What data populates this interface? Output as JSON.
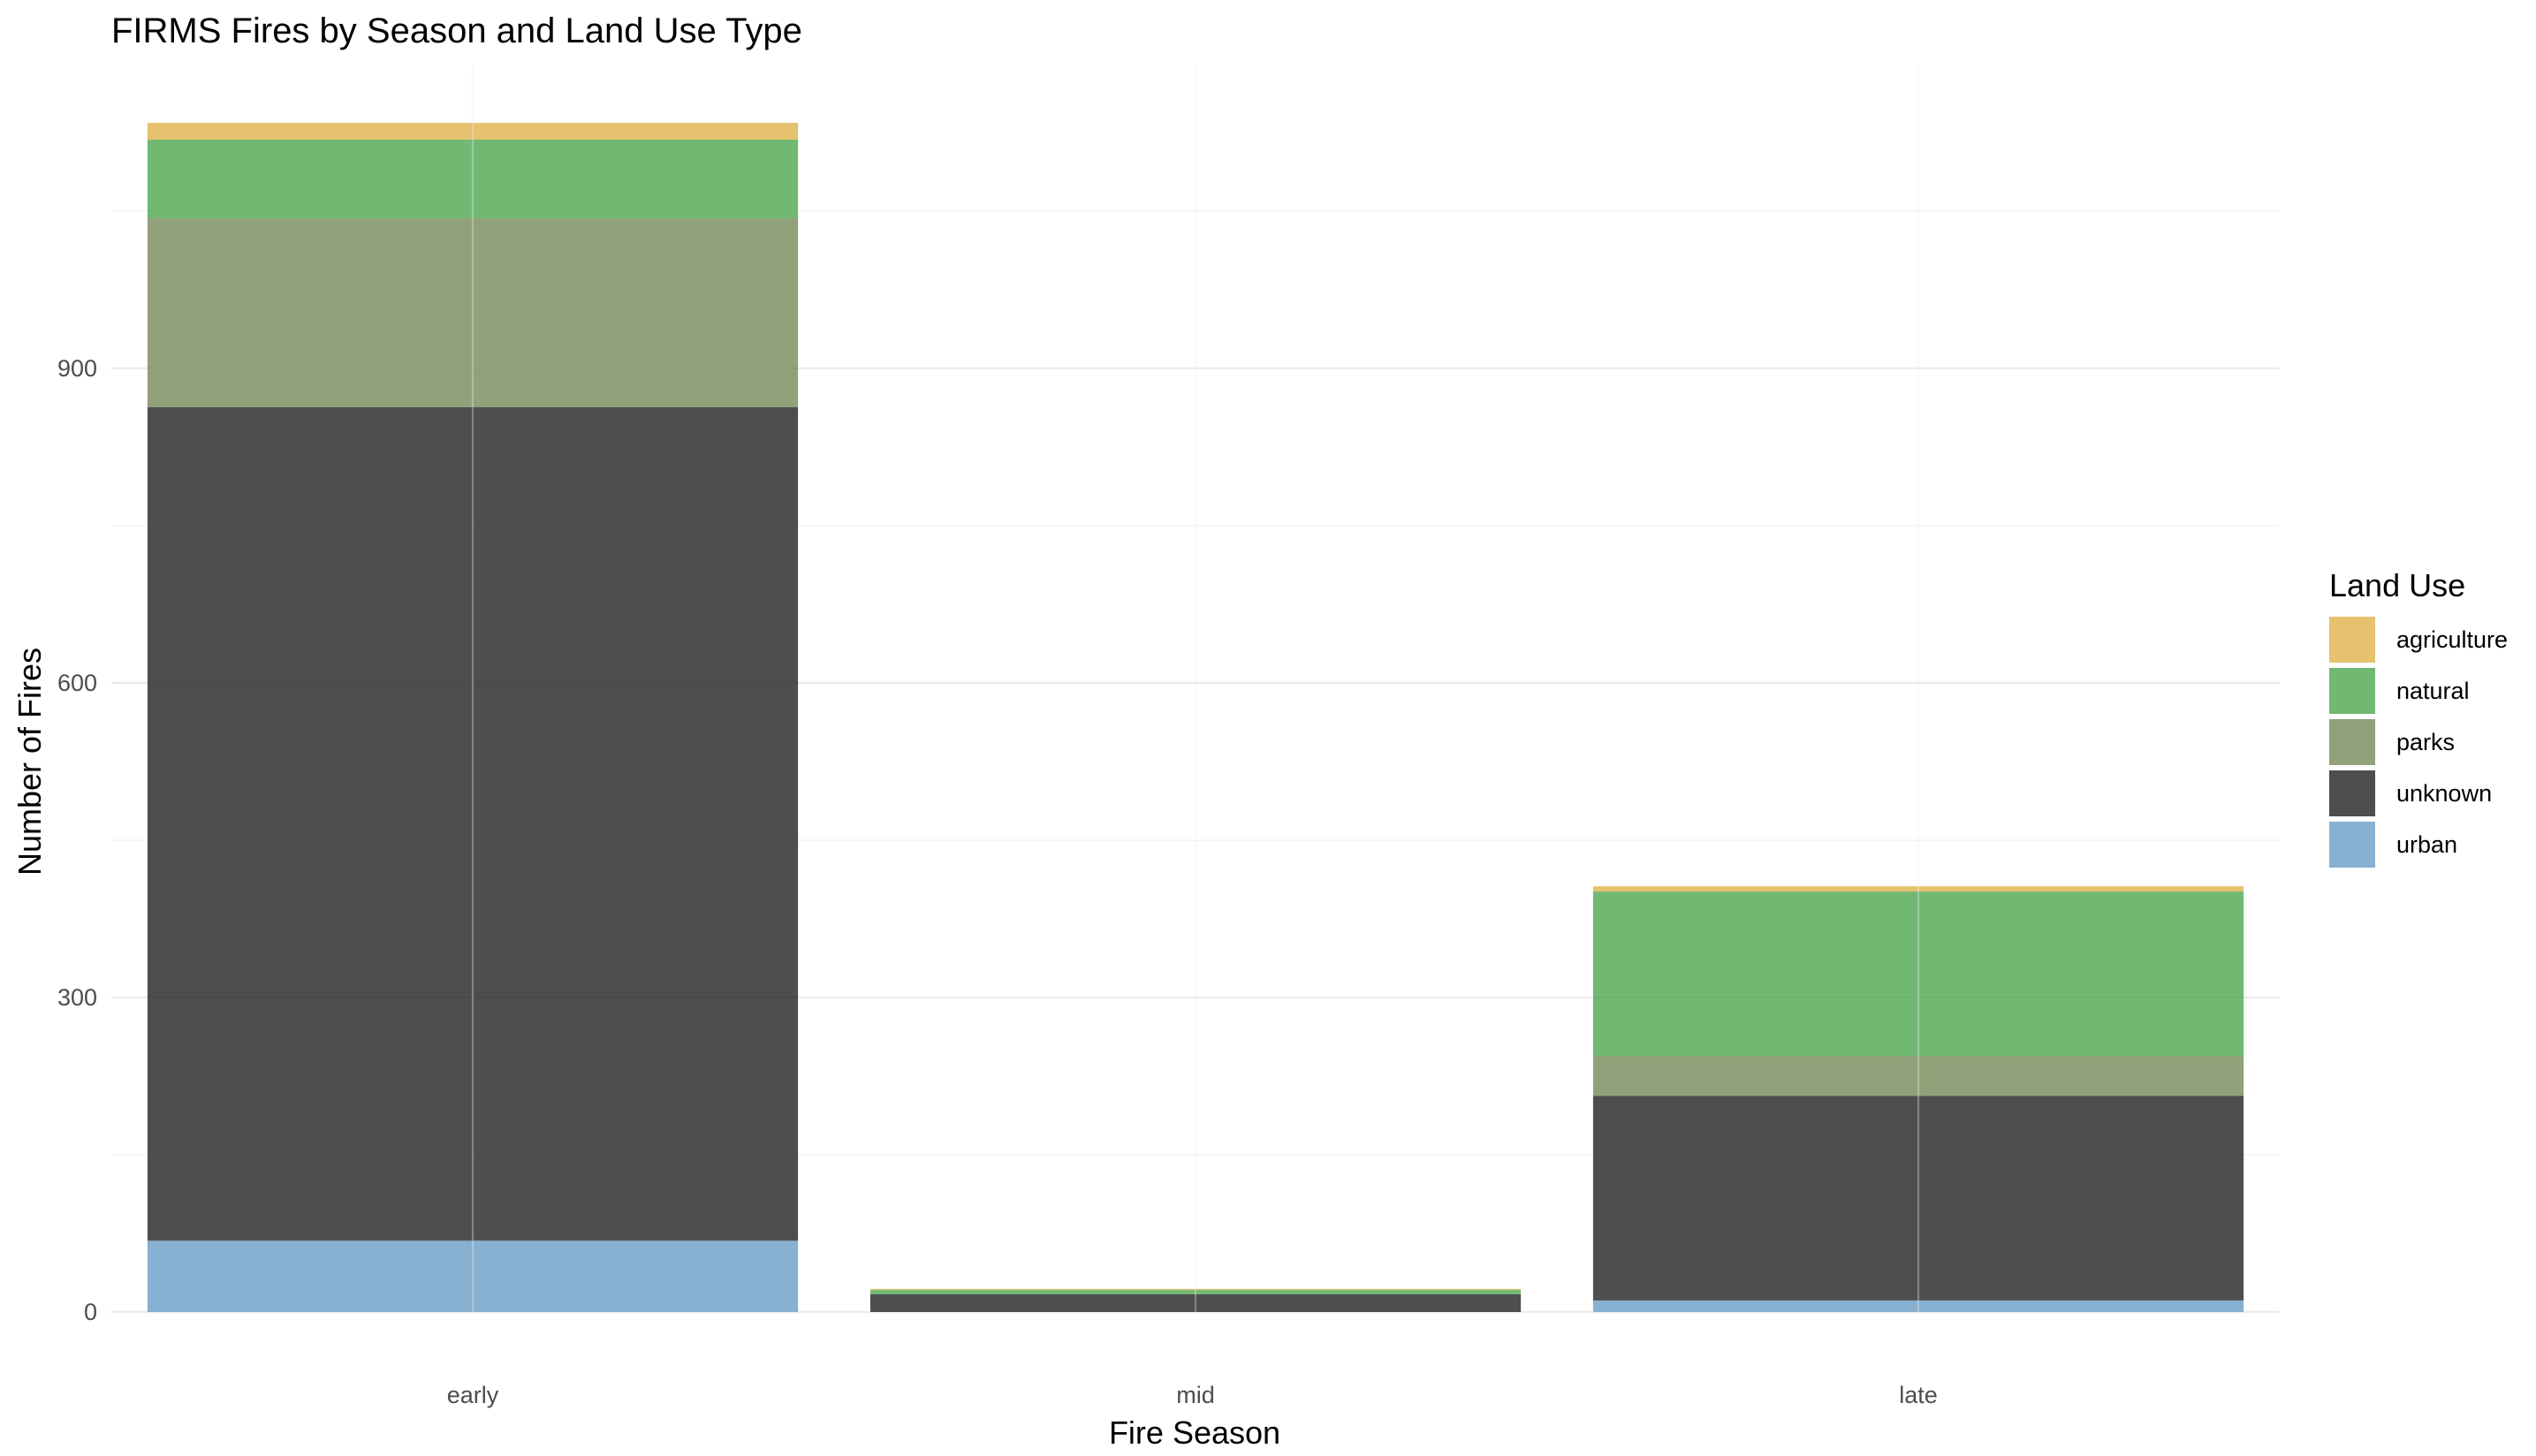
{
  "chart_data": {
    "type": "bar",
    "stacked": true,
    "title": "FIRMS Fires by Season and Land Use Type",
    "xlabel": "Fire Season",
    "ylabel": "Number of Fires",
    "categories": [
      "early",
      "mid",
      "late"
    ],
    "ylim": [
      0,
      1188
    ],
    "yticks": [
      0,
      300,
      600,
      900
    ],
    "grid": true,
    "legend": {
      "title": "Land Use",
      "position": "right"
    },
    "series": [
      {
        "name": "agriculture",
        "color": "#E0B34A",
        "values": [
          16,
          1,
          5
        ]
      },
      {
        "name": "natural",
        "color": "#4DA650",
        "values": [
          75,
          4,
          157
        ]
      },
      {
        "name": "parks",
        "color": "#768A58",
        "values": [
          180,
          0,
          38
        ]
      },
      {
        "name": "unknown",
        "color": "#222222",
        "values": [
          795,
          17,
          195
        ]
      },
      {
        "name": "urban",
        "color": "#6A9CC6",
        "values": [
          68,
          0,
          11
        ]
      }
    ],
    "stack_order_bottom_to_top": [
      "urban",
      "unknown",
      "parks",
      "natural",
      "agriculture"
    ],
    "bar_opacity": 0.8
  }
}
